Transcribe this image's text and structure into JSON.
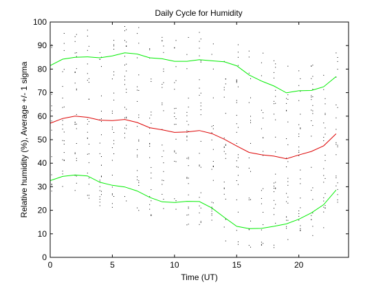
{
  "chart_data": {
    "type": "line",
    "title": "Daily Cycle for Humidity",
    "xlabel": "Time (UT)",
    "ylabel": "Relative humidity (%), Average +/- 1 sigma",
    "xlim": [
      0,
      24
    ],
    "ylim": [
      0,
      100
    ],
    "xticks": [
      0,
      5,
      10,
      15,
      20
    ],
    "yticks": [
      0,
      10,
      20,
      30,
      40,
      50,
      60,
      70,
      80,
      90,
      100
    ],
    "grid": false,
    "legend": "none",
    "x": [
      0,
      1,
      2,
      3,
      4,
      5,
      6,
      7,
      8,
      9,
      10,
      11,
      12,
      13,
      14,
      15,
      16,
      17,
      18,
      19,
      20,
      21,
      22,
      23
    ],
    "series": [
      {
        "color": "#00ee00",
        "values": [
          81.5,
          84.2,
          85.0,
          85.2,
          84.8,
          85.6,
          86.9,
          86.4,
          84.8,
          84.4,
          83.3,
          83.3,
          84.0,
          83.5,
          83.1,
          81.4,
          77.5,
          74.9,
          72.8,
          69.9,
          70.8,
          70.9,
          72.5,
          76.8
        ]
      },
      {
        "color": "#dd0000",
        "values": [
          57.0,
          59.0,
          60.0,
          59.5,
          58.3,
          58.1,
          58.6,
          57.3,
          55.1,
          54.2,
          53.1,
          53.3,
          53.9,
          52.6,
          50.2,
          47.3,
          44.6,
          43.6,
          43.0,
          41.9,
          43.5,
          45.0,
          47.4,
          52.5
        ]
      },
      {
        "color": "#00ee00",
        "values": [
          32.6,
          34.4,
          35.0,
          34.6,
          31.9,
          30.6,
          29.9,
          28.2,
          25.5,
          23.6,
          23.3,
          23.8,
          23.7,
          21.0,
          17.0,
          13.2,
          12.2,
          12.3,
          13.2,
          14.2,
          16.2,
          18.9,
          22.4,
          28.6
        ]
      }
    ],
    "scatter_dots": {
      "description_hours": [
        0,
        1,
        2,
        3,
        4,
        5,
        6,
        7,
        8,
        9,
        10,
        11,
        12,
        13,
        14,
        15,
        16,
        17,
        18,
        19,
        20,
        21,
        22,
        23
      ],
      "color": "#000000"
    }
  }
}
